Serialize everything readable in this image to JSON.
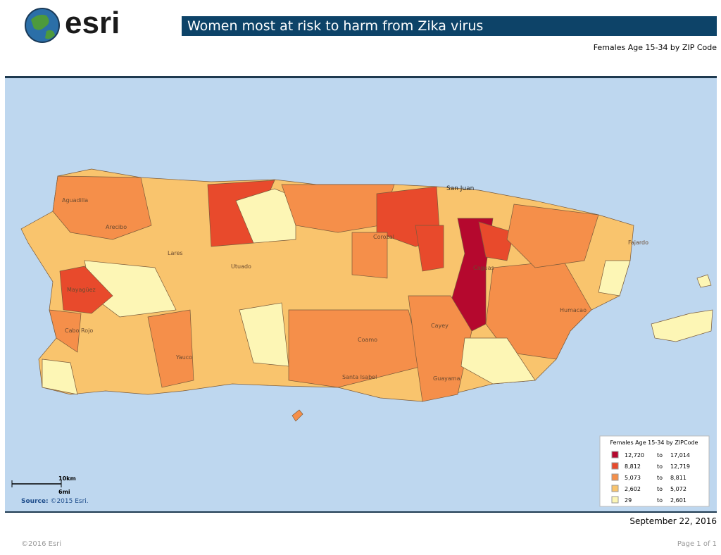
{
  "header": {
    "logo": "esri",
    "title": "Women most at risk to harm from Zika virus",
    "subtitle": "Females Age 15-34 by ZIP Code"
  },
  "map_labels": [
    "San Juan",
    "Aguadilla",
    "Arecibo",
    "Mayagüez",
    "Cabo Rojo",
    "Lares",
    "Utuado",
    "Corozal",
    "Cayey",
    "Coamo",
    "Santa Isabel",
    "Guayama",
    "Humacao",
    "Fajardo",
    "Yauco",
    "Caguas"
  ],
  "legend": {
    "title": "Females Age 15-34 by ZIPCode",
    "rows": [
      {
        "color": "#b5082e",
        "from": "12,720",
        "to_word": "to",
        "to": "17,014"
      },
      {
        "color": "#e84a2c",
        "from": "8,812",
        "to_word": "to",
        "to": "12,719"
      },
      {
        "color": "#f58f4a",
        "from": "5,073",
        "to_word": "to",
        "to": "8,811"
      },
      {
        "color": "#f9c46d",
        "from": "2,602",
        "to_word": "to",
        "to": "5,072"
      },
      {
        "color": "#fdf6b5",
        "from": "29",
        "to_word": "to",
        "to": "2,601"
      }
    ]
  },
  "scale": {
    "km": "10km",
    "mi": "6mi"
  },
  "source": {
    "label": "Source:",
    "text": "©2015 Esri."
  },
  "date": "September 22, 2016",
  "footer": {
    "copyright": "©2016 Esri",
    "page": "Page 1 of 1"
  }
}
